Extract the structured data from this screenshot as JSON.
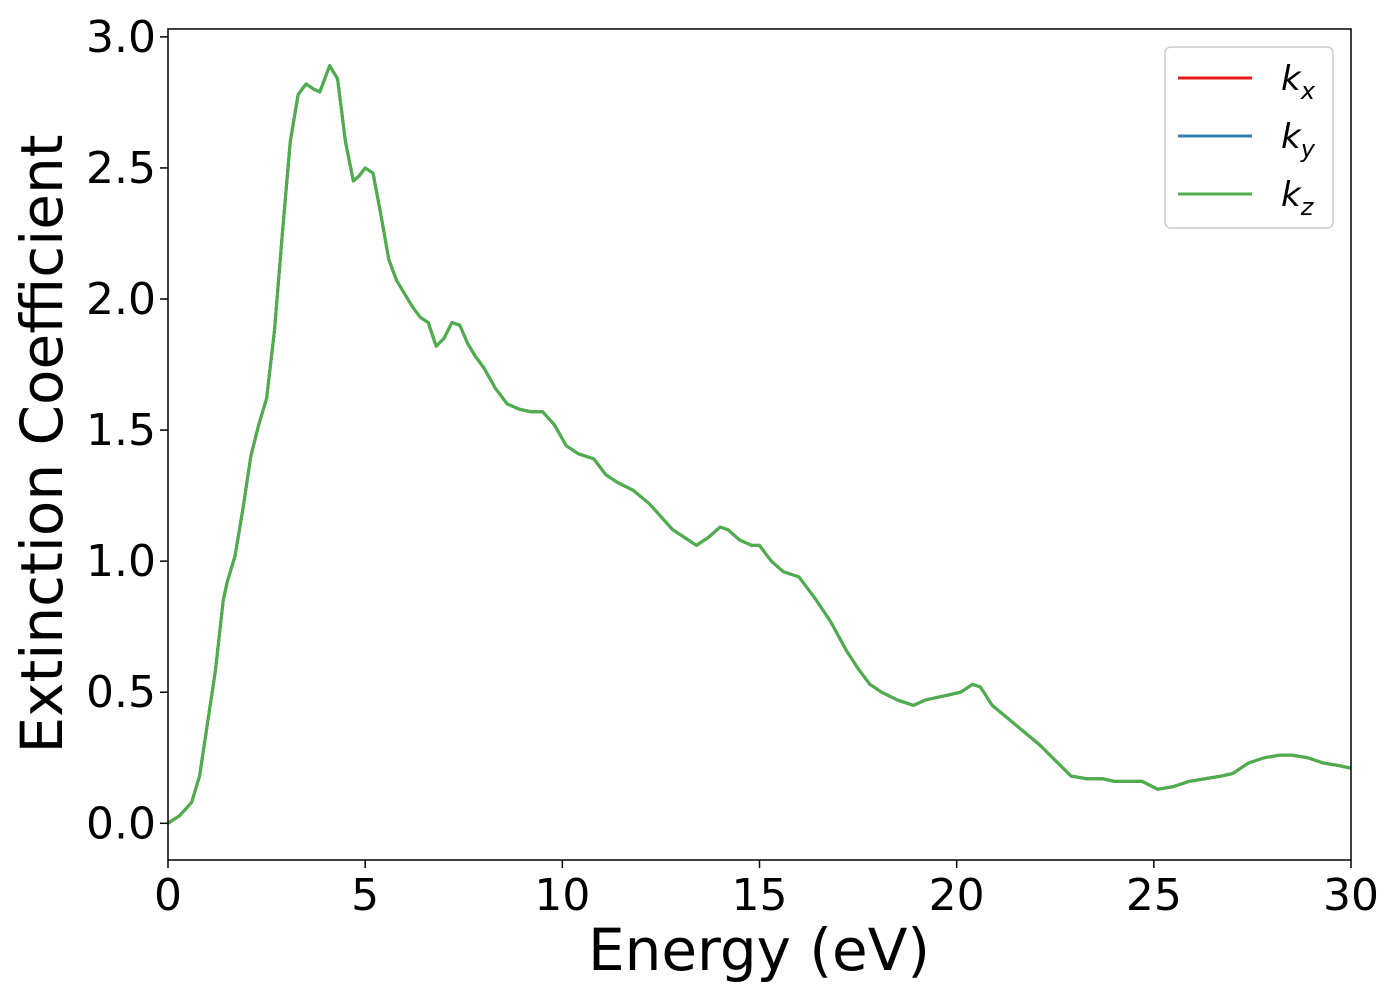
{
  "chart_data": {
    "type": "line",
    "xlabel": "Energy (eV)",
    "ylabel": "Extinction Coefficient",
    "xlim": [
      0,
      30
    ],
    "ylim": [
      -0.14,
      3.03
    ],
    "xticks": [
      "0",
      "5",
      "10",
      "15",
      "20",
      "25",
      "30"
    ],
    "yticks": [
      "0.0",
      "0.5",
      "1.0",
      "1.5",
      "2.0",
      "2.5",
      "3.0"
    ],
    "grid": false,
    "legend_position": "top-right",
    "x": [
      0,
      0.3,
      0.6,
      0.8,
      1.0,
      1.2,
      1.4,
      1.5,
      1.7,
      1.9,
      2.1,
      2.3,
      2.5,
      2.7,
      2.9,
      3.1,
      3.3,
      3.5,
      3.7,
      3.85,
      4.0,
      4.1,
      4.3,
      4.5,
      4.7,
      4.85,
      5.0,
      5.2,
      5.4,
      5.6,
      5.8,
      6.0,
      6.2,
      6.4,
      6.6,
      6.8,
      7.0,
      7.2,
      7.4,
      7.6,
      7.8,
      8.0,
      8.3,
      8.6,
      8.9,
      9.2,
      9.5,
      9.8,
      10.1,
      10.4,
      10.8,
      11.1,
      11.4,
      11.8,
      12.2,
      12.5,
      12.8,
      13.1,
      13.4,
      13.7,
      14.0,
      14.2,
      14.5,
      14.8,
      15.0,
      15.3,
      15.6,
      16.0,
      16.4,
      16.8,
      17.2,
      17.5,
      17.8,
      18.1,
      18.5,
      18.9,
      19.2,
      19.5,
      19.8,
      20.1,
      20.4,
      20.6,
      20.9,
      21.3,
      21.7,
      22.1,
      22.5,
      22.9,
      23.3,
      23.7,
      24.0,
      24.4,
      24.7,
      25.1,
      25.5,
      25.9,
      26.3,
      26.7,
      27.0,
      27.4,
      27.8,
      28.2,
      28.5,
      28.9,
      29.3,
      29.7,
      30.0
    ],
    "series": [
      {
        "name": "k_x",
        "color": "#e41a1c",
        "y": [
          0,
          0.03,
          0.08,
          0.18,
          0.38,
          0.58,
          0.85,
          0.92,
          1.02,
          1.2,
          1.4,
          1.52,
          1.62,
          1.88,
          2.25,
          2.6,
          2.78,
          2.82,
          2.8,
          2.79,
          2.85,
          2.89,
          2.84,
          2.6,
          2.45,
          2.47,
          2.5,
          2.48,
          2.32,
          2.15,
          2.07,
          2.02,
          1.97,
          1.93,
          1.91,
          1.82,
          1.85,
          1.91,
          1.9,
          1.83,
          1.78,
          1.74,
          1.66,
          1.6,
          1.58,
          1.57,
          1.57,
          1.52,
          1.44,
          1.41,
          1.39,
          1.33,
          1.3,
          1.27,
          1.22,
          1.17,
          1.12,
          1.09,
          1.06,
          1.09,
          1.13,
          1.12,
          1.08,
          1.06,
          1.06,
          1.0,
          0.96,
          0.94,
          0.86,
          0.77,
          0.66,
          0.59,
          0.53,
          0.5,
          0.47,
          0.45,
          0.47,
          0.48,
          0.49,
          0.5,
          0.53,
          0.52,
          0.45,
          0.4,
          0.35,
          0.3,
          0.24,
          0.18,
          0.17,
          0.17,
          0.16,
          0.16,
          0.16,
          0.13,
          0.14,
          0.16,
          0.17,
          0.18,
          0.19,
          0.23,
          0.25,
          0.26,
          0.26,
          0.25,
          0.23,
          0.22,
          0.21
        ]
      },
      {
        "name": "k_y",
        "color": "#377eb8",
        "y": [
          0,
          0.03,
          0.08,
          0.18,
          0.38,
          0.58,
          0.85,
          0.92,
          1.02,
          1.2,
          1.4,
          1.52,
          1.62,
          1.88,
          2.25,
          2.6,
          2.78,
          2.82,
          2.8,
          2.79,
          2.85,
          2.89,
          2.84,
          2.6,
          2.45,
          2.47,
          2.5,
          2.48,
          2.32,
          2.15,
          2.07,
          2.02,
          1.97,
          1.93,
          1.91,
          1.82,
          1.85,
          1.91,
          1.9,
          1.83,
          1.78,
          1.74,
          1.66,
          1.6,
          1.58,
          1.57,
          1.57,
          1.52,
          1.44,
          1.41,
          1.39,
          1.33,
          1.3,
          1.27,
          1.22,
          1.17,
          1.12,
          1.09,
          1.06,
          1.09,
          1.13,
          1.12,
          1.08,
          1.06,
          1.06,
          1.0,
          0.96,
          0.94,
          0.86,
          0.77,
          0.66,
          0.59,
          0.53,
          0.5,
          0.47,
          0.45,
          0.47,
          0.48,
          0.49,
          0.5,
          0.53,
          0.52,
          0.45,
          0.4,
          0.35,
          0.3,
          0.24,
          0.18,
          0.17,
          0.17,
          0.16,
          0.16,
          0.16,
          0.13,
          0.14,
          0.16,
          0.17,
          0.18,
          0.19,
          0.23,
          0.25,
          0.26,
          0.26,
          0.25,
          0.23,
          0.22,
          0.21
        ]
      },
      {
        "name": "k_z",
        "color": "#4daf4a",
        "y": [
          0,
          0.03,
          0.08,
          0.18,
          0.38,
          0.58,
          0.85,
          0.92,
          1.02,
          1.2,
          1.4,
          1.52,
          1.62,
          1.88,
          2.25,
          2.6,
          2.78,
          2.82,
          2.8,
          2.79,
          2.85,
          2.89,
          2.84,
          2.6,
          2.45,
          2.47,
          2.5,
          2.48,
          2.32,
          2.15,
          2.07,
          2.02,
          1.97,
          1.93,
          1.91,
          1.82,
          1.85,
          1.91,
          1.9,
          1.83,
          1.78,
          1.74,
          1.66,
          1.6,
          1.58,
          1.57,
          1.57,
          1.52,
          1.44,
          1.41,
          1.39,
          1.33,
          1.3,
          1.27,
          1.22,
          1.17,
          1.12,
          1.09,
          1.06,
          1.09,
          1.13,
          1.12,
          1.08,
          1.06,
          1.06,
          1.0,
          0.96,
          0.94,
          0.86,
          0.77,
          0.66,
          0.59,
          0.53,
          0.5,
          0.47,
          0.45,
          0.47,
          0.48,
          0.49,
          0.5,
          0.53,
          0.52,
          0.45,
          0.4,
          0.35,
          0.3,
          0.24,
          0.18,
          0.17,
          0.17,
          0.16,
          0.16,
          0.16,
          0.13,
          0.14,
          0.16,
          0.17,
          0.18,
          0.19,
          0.23,
          0.25,
          0.26,
          0.26,
          0.25,
          0.23,
          0.22,
          0.21
        ]
      }
    ],
    "legend": [
      {
        "label": "k",
        "subscript": "x",
        "color": "#e41a1c"
      },
      {
        "label": "k",
        "subscript": "y",
        "color": "#377eb8"
      },
      {
        "label": "k",
        "subscript": "z",
        "color": "#4daf4a"
      }
    ]
  }
}
